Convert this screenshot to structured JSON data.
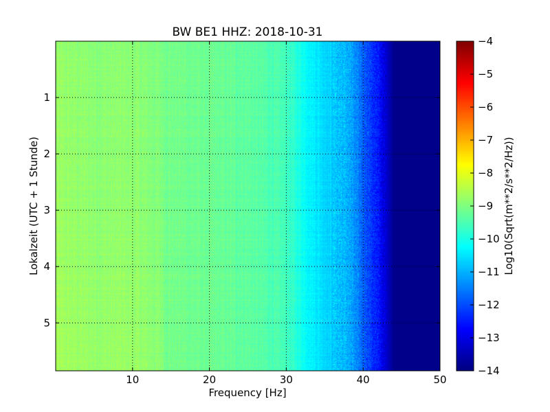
{
  "chart_data": {
    "type": "heatmap",
    "title": "BW BE1 HHZ: 2018-10-31",
    "xlabel": "Frequency [Hz]",
    "ylabel": "Lokalzeit (UTC + 1 Stunde)",
    "xlim": [
      0,
      50
    ],
    "ylim": [
      5.85,
      0
    ],
    "x_ticks": [
      10,
      20,
      30,
      40,
      50
    ],
    "y_ticks": [
      1,
      2,
      3,
      4,
      5
    ],
    "grid": true,
    "colormap": "jet",
    "colorbar": {
      "label": "Log10(Sqrt(m**2/s**2/Hz))",
      "range": [
        -14,
        -4
      ],
      "ticks": [
        -4,
        -5,
        -6,
        -7,
        -8,
        -9,
        -10,
        -11,
        -12,
        -13,
        -14
      ]
    },
    "spectrum_profile": {
      "frequency_hz": [
        0,
        5,
        10,
        15,
        20,
        25,
        30,
        33,
        35,
        38,
        40,
        42,
        44,
        50
      ],
      "log10_amplitude": [
        -8.8,
        -8.9,
        -8.9,
        -9.1,
        -9.2,
        -9.3,
        -9.6,
        -10.3,
        -10.6,
        -11.0,
        -11.8,
        -12.6,
        -13.9,
        -13.9
      ]
    }
  }
}
